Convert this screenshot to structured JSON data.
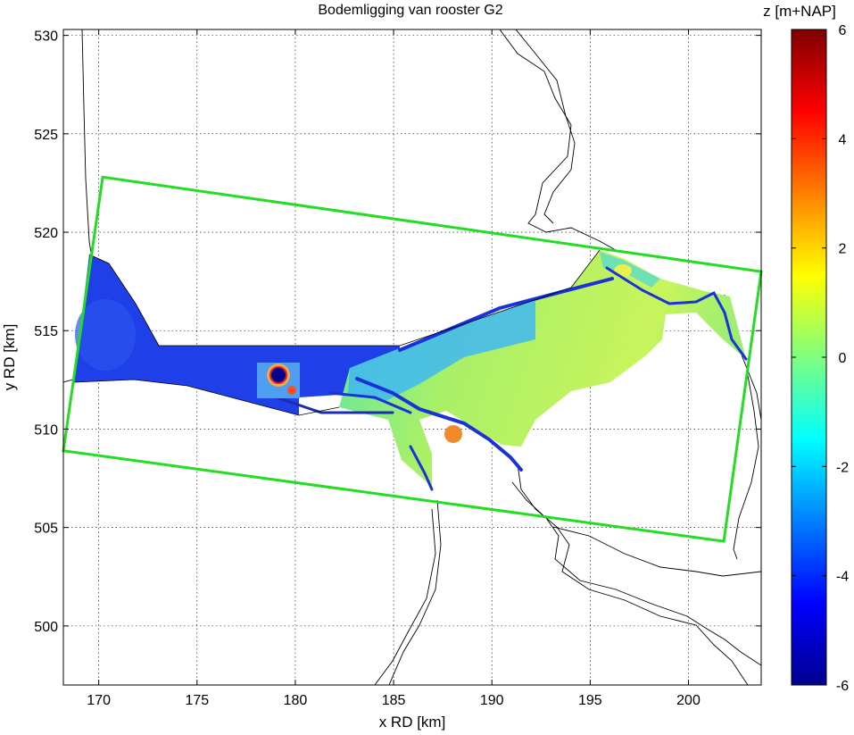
{
  "chart_data": {
    "type": "heatmap",
    "title": "Bodemligging van rooster G2",
    "xlabel": "x RD [km]",
    "ylabel": "y RD [km]",
    "xlim": [
      168.2,
      203.7
    ],
    "ylim": [
      497.0,
      530.3
    ],
    "xticks": [
      "170",
      "175",
      "180",
      "185",
      "190",
      "195",
      "200"
    ],
    "yticks": [
      "500",
      "505",
      "510",
      "515",
      "520",
      "525",
      "530"
    ],
    "grid": true,
    "colorbar": {
      "label": "z [m+NAP]",
      "range": [
        -6,
        6
      ],
      "ticks": [
        "-6",
        "-4",
        "-2",
        "0",
        "2",
        "4",
        "6"
      ],
      "colormap": "jet"
    },
    "grid_outline": {
      "name": "rooster G2",
      "color": "#22dd22",
      "corners": [
        [
          170.2,
          522.8
        ],
        [
          203.7,
          518.0
        ],
        [
          201.8,
          504.3
        ],
        [
          168.2,
          508.9
        ]
      ]
    }
  }
}
